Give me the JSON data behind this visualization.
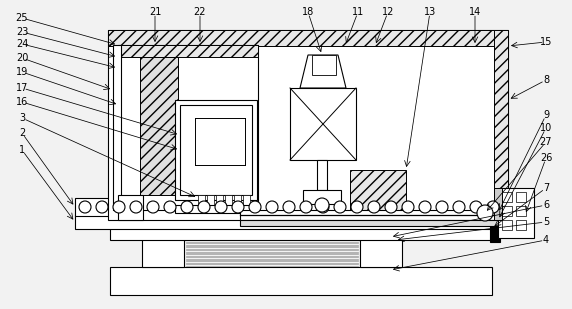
{
  "bg_color": "#f2f2f2",
  "lw": 0.8,
  "fs": 7.0,
  "fig_w": 5.72,
  "fig_h": 3.09,
  "dpi": 100
}
